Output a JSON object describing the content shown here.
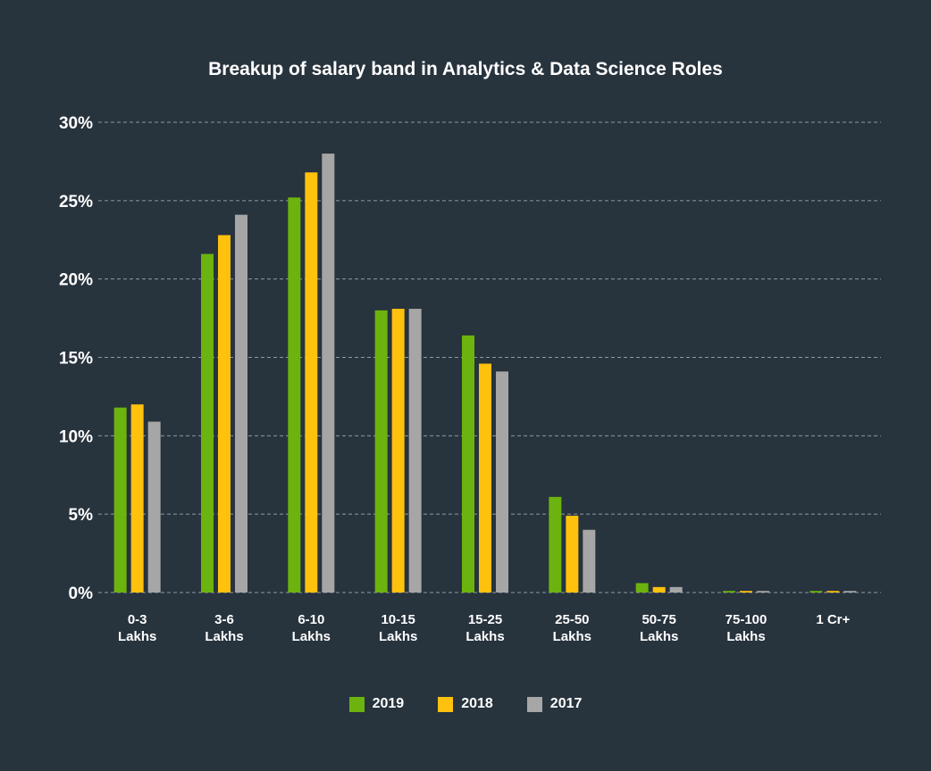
{
  "chart_data": {
    "type": "bar",
    "title": "Breakup of salary band in Analytics & Data Science Roles",
    "xlabel": "",
    "ylabel": "",
    "ylim": [
      0,
      30
    ],
    "yticks": [
      "0%",
      "5%",
      "10%",
      "15%",
      "20%",
      "25%",
      "30%"
    ],
    "ytick_values": [
      0,
      5,
      10,
      15,
      20,
      25,
      30
    ],
    "grid": true,
    "legend_position": "bottom",
    "categories": [
      [
        "0-3",
        "Lakhs"
      ],
      [
        "3-6",
        "Lakhs"
      ],
      [
        "6-10",
        "Lakhs"
      ],
      [
        "10-15",
        "Lakhs"
      ],
      [
        "15-25",
        "Lakhs"
      ],
      [
        "25-50",
        "Lakhs"
      ],
      [
        "50-75",
        "Lakhs"
      ],
      [
        "75-100",
        "Lakhs"
      ],
      [
        "1 Cr+"
      ]
    ],
    "series": [
      {
        "name": "2019",
        "color": "#6cb30f",
        "values": [
          11.8,
          21.6,
          25.2,
          18.0,
          16.4,
          6.1,
          0.6,
          0.1,
          0.1
        ]
      },
      {
        "name": "2018",
        "color": "#fec10e",
        "values": [
          12.0,
          22.8,
          26.8,
          18.1,
          14.6,
          4.9,
          0.35,
          0.1,
          0.1
        ]
      },
      {
        "name": "2017",
        "color": "#a6a6a6",
        "values": [
          10.9,
          24.1,
          28.0,
          18.1,
          14.1,
          4.0,
          0.35,
          0.1,
          0.1
        ]
      }
    ]
  },
  "colors": {
    "background": "#27333d",
    "grid": "#8f9aa3",
    "text": "#ffffff"
  }
}
